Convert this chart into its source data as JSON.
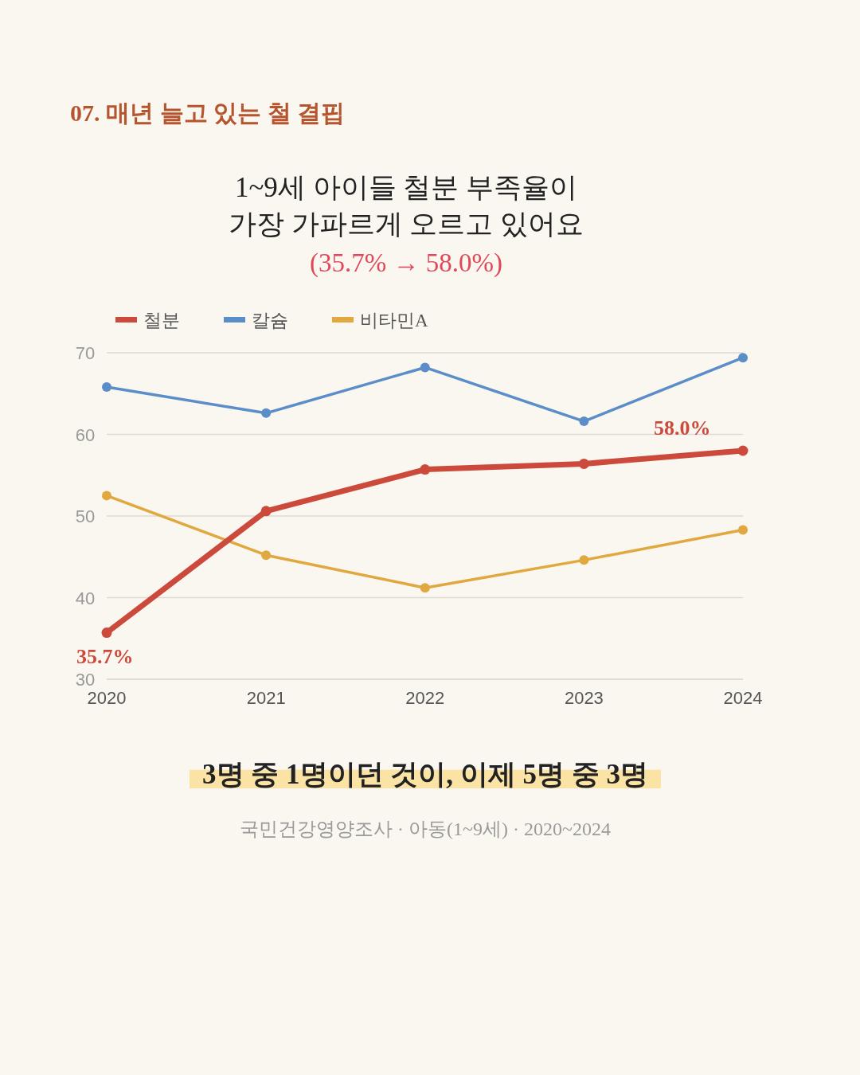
{
  "chart_data": {
    "type": "line",
    "title": "07. 매년 늘고 있는 철 결핍",
    "subtitle": "1~9세 아이들 철분 부족율이\n가장 가파르게 오르고 있어요",
    "annotations": [
      "(35.7% → 58.0%)",
      "3명 중 1명이던 것이, 이제 5명 중 3명",
      "국민건강영양조사 · 아동(1~9세) · 2020~2024"
    ],
    "x": [
      "2020",
      "2021",
      "2022",
      "2023",
      "2024"
    ],
    "series": [
      {
        "name": "철분",
        "color": "#cc4a3c",
        "values": [
          35.7,
          50.6,
          55.7,
          56.4,
          58.0
        ],
        "value_labels": [
          "35.7%",
          null,
          null,
          null,
          "58.0%"
        ]
      },
      {
        "name": "칼슘",
        "color": "#5b8ec9",
        "values": [
          65.8,
          62.6,
          68.2,
          61.6,
          69.4
        ]
      },
      {
        "name": "비타민A",
        "color": "#e0a83e",
        "values": [
          52.5,
          45.2,
          41.2,
          44.6,
          48.3
        ]
      }
    ],
    "xlim": [
      "2020",
      "2024"
    ],
    "xticks": [
      {
        "value": "2020",
        "label": "2020"
      },
      {
        "value": "2021",
        "label": "2021"
      },
      {
        "value": "2022",
        "label": "2022"
      },
      {
        "value": "2023",
        "label": "2023"
      },
      {
        "value": "2024",
        "label": "2024"
      }
    ],
    "ylim": [
      30,
      70
    ],
    "yticks": [
      30,
      40,
      50,
      60,
      70
    ],
    "grid": "y",
    "legend": "top left",
    "marker": "circle",
    "line_style": "solid"
  }
}
